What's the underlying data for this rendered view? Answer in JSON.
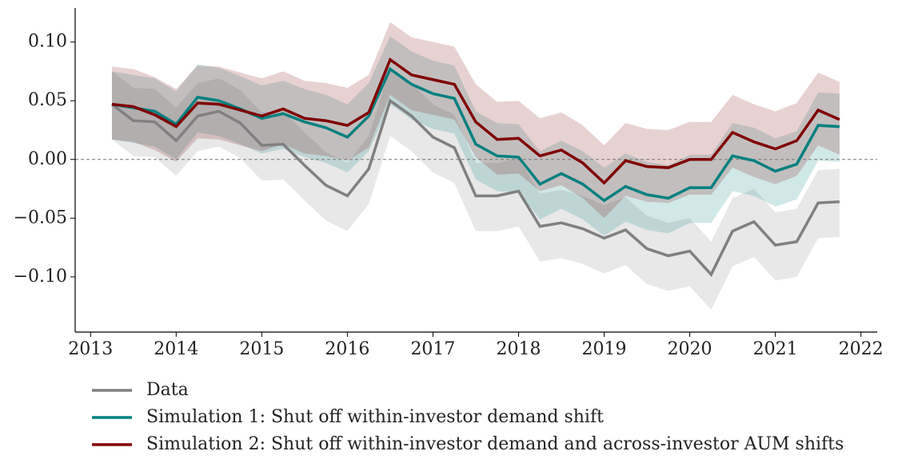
{
  "chart_data": {
    "type": "line",
    "x": [
      2013.25,
      2013.5,
      2013.75,
      2014,
      2014.25,
      2014.5,
      2014.75,
      2015,
      2015.25,
      2015.5,
      2015.75,
      2016,
      2016.25,
      2016.5,
      2016.75,
      2017,
      2017.25,
      2017.5,
      2017.75,
      2018,
      2018.25,
      2018.5,
      2018.75,
      2019,
      2019.25,
      2019.5,
      2019.75,
      2020,
      2020.25,
      2020.5,
      2020.75,
      2021,
      2021.25,
      2021.5,
      2021.75
    ],
    "series": [
      {
        "name": "Data",
        "color": "#808080",
        "values": [
          0.047,
          0.033,
          0.032,
          0.016,
          0.037,
          0.041,
          0.031,
          0.012,
          0.013,
          -0.005,
          -0.022,
          -0.031,
          -0.008,
          0.05,
          0.037,
          0.019,
          0.01,
          -0.031,
          -0.031,
          -0.027,
          -0.057,
          -0.054,
          -0.059,
          -0.067,
          -0.06,
          -0.076,
          -0.082,
          -0.078,
          -0.098,
          -0.061,
          -0.053,
          -0.073,
          -0.07,
          -0.037,
          -0.036
        ],
        "upper": [
          0.075,
          0.061,
          0.06,
          0.044,
          0.065,
          0.069,
          0.059,
          0.04,
          0.041,
          0.023,
          0.006,
          -0.003,
          0.02,
          0.078,
          0.065,
          0.047,
          0.038,
          -0.003,
          -0.003,
          0.001,
          -0.029,
          -0.026,
          -0.031,
          -0.039,
          -0.032,
          -0.048,
          -0.054,
          -0.05,
          -0.07,
          -0.033,
          -0.025,
          -0.045,
          -0.042,
          -0.009,
          -0.008
        ],
        "lower": [
          0.017,
          0.003,
          0.002,
          -0.014,
          0.007,
          0.011,
          0.001,
          -0.018,
          -0.017,
          -0.035,
          -0.052,
          -0.061,
          -0.038,
          0.02,
          0.007,
          -0.011,
          -0.02,
          -0.061,
          -0.061,
          -0.057,
          -0.087,
          -0.084,
          -0.089,
          -0.097,
          -0.09,
          -0.106,
          -0.112,
          -0.108,
          -0.128,
          -0.091,
          -0.083,
          -0.103,
          -0.1,
          -0.067,
          -0.066
        ]
      },
      {
        "name": "Simulation 1: Shut off within-investor demand shift",
        "color": "#008080",
        "values": [
          0.047,
          0.044,
          0.041,
          0.03,
          0.053,
          0.05,
          0.043,
          0.035,
          0.039,
          0.032,
          0.027,
          0.019,
          0.037,
          0.077,
          0.064,
          0.056,
          0.052,
          0.013,
          0.003,
          0.002,
          -0.021,
          -0.012,
          -0.021,
          -0.035,
          -0.023,
          -0.03,
          -0.033,
          -0.024,
          -0.024,
          0.003,
          -0.001,
          -0.01,
          -0.004,
          0.029,
          0.028
        ],
        "upper": [
          0.075,
          0.072,
          0.069,
          0.058,
          0.081,
          0.078,
          0.071,
          0.063,
          0.067,
          0.06,
          0.055,
          0.047,
          0.065,
          0.105,
          0.092,
          0.084,
          0.08,
          0.041,
          0.031,
          0.03,
          0.007,
          0.016,
          0.007,
          -0.007,
          0.005,
          -0.002,
          -0.005,
          0.004,
          0.004,
          0.031,
          0.027,
          0.018,
          0.024,
          0.057,
          0.056
        ],
        "lower": [
          0.017,
          0.014,
          0.011,
          0.0,
          0.023,
          0.02,
          0.013,
          0.005,
          0.009,
          0.002,
          -0.003,
          -0.011,
          0.007,
          0.047,
          0.034,
          0.026,
          0.022,
          -0.017,
          -0.027,
          -0.028,
          -0.051,
          -0.042,
          -0.051,
          -0.065,
          -0.053,
          -0.06,
          -0.063,
          -0.054,
          -0.054,
          -0.027,
          -0.031,
          -0.04,
          -0.034,
          -0.001,
          -0.002
        ]
      },
      {
        "name": "Simulation 2: Shut off within-investor demand and across-investor AUM shifts",
        "color": "#800000",
        "values": [
          0.047,
          0.045,
          0.038,
          0.028,
          0.048,
          0.047,
          0.042,
          0.037,
          0.043,
          0.035,
          0.033,
          0.029,
          0.04,
          0.085,
          0.072,
          0.068,
          0.064,
          0.032,
          0.017,
          0.018,
          0.003,
          0.008,
          -0.003,
          -0.02,
          -0.001,
          -0.006,
          -0.007,
          0.0,
          0.0,
          0.023,
          0.015,
          0.009,
          0.016,
          0.042,
          0.034
        ],
        "upper": [
          0.079,
          0.077,
          0.07,
          0.06,
          0.08,
          0.079,
          0.074,
          0.069,
          0.075,
          0.067,
          0.065,
          0.061,
          0.072,
          0.117,
          0.104,
          0.1,
          0.096,
          0.064,
          0.049,
          0.05,
          0.035,
          0.04,
          0.029,
          0.012,
          0.031,
          0.026,
          0.025,
          0.032,
          0.032,
          0.055,
          0.047,
          0.041,
          0.048,
          0.074,
          0.066
        ],
        "lower": [
          0.017,
          0.015,
          0.008,
          -0.002,
          0.018,
          0.017,
          0.012,
          0.007,
          0.013,
          0.005,
          0.003,
          -0.001,
          0.01,
          0.055,
          0.042,
          0.038,
          0.034,
          0.002,
          -0.013,
          -0.012,
          -0.027,
          -0.022,
          -0.033,
          -0.05,
          -0.031,
          -0.036,
          -0.037,
          -0.03,
          -0.03,
          -0.007,
          -0.015,
          -0.021,
          -0.014,
          0.012,
          0.004
        ]
      }
    ],
    "xlim": [
      2012.82,
      2022.19
    ],
    "ylim": [
      -0.147,
      0.129
    ],
    "xticks": [
      2013,
      2014,
      2015,
      2016,
      2017,
      2018,
      2019,
      2020,
      2021,
      2022
    ],
    "yticks": [
      {
        "value": 0.1,
        "label": "0.10"
      },
      {
        "value": 0.05,
        "label": "0.05"
      },
      {
        "value": 0,
        "label": "0.00"
      },
      {
        "value": -0.05,
        "label": "−0.05"
      },
      {
        "value": -0.1,
        "label": "−0.10"
      }
    ],
    "hline": 0,
    "legend": "bottom-left"
  }
}
